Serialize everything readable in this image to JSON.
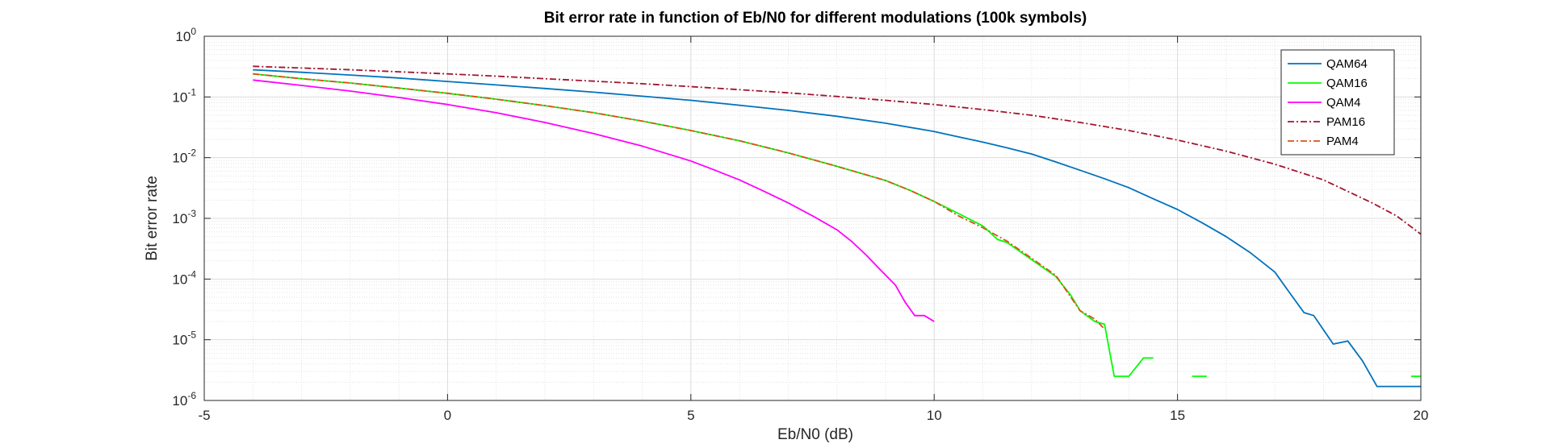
{
  "chart_data": {
    "type": "line",
    "title": "Bit error rate in function of Eb/N0 for different modulations (100k symbols)",
    "xlabel": "Eb/N0 (dB)",
    "ylabel": "Bit error rate",
    "xlim": [
      -5,
      20
    ],
    "ylim": [
      1e-06,
      1
    ],
    "yscale": "log",
    "grid": true,
    "minor_grid": true,
    "legend_position": "top-right",
    "x_ticks": [
      {
        "value": -5,
        "label": "-5"
      },
      {
        "value": 0,
        "label": "0"
      },
      {
        "value": 5,
        "label": "5"
      },
      {
        "value": 10,
        "label": "10"
      },
      {
        "value": 15,
        "label": "15"
      },
      {
        "value": 20,
        "label": "20"
      }
    ],
    "y_ticks": [
      {
        "value": 1e-06,
        "base": "10",
        "exp": "-6"
      },
      {
        "value": 1e-05,
        "base": "10",
        "exp": "-5"
      },
      {
        "value": 0.0001,
        "base": "10",
        "exp": "-4"
      },
      {
        "value": 0.001,
        "base": "10",
        "exp": "-3"
      },
      {
        "value": 0.01,
        "base": "10",
        "exp": "-2"
      },
      {
        "value": 0.1,
        "base": "10",
        "exp": "-1"
      },
      {
        "value": 1,
        "base": "10",
        "exp": "0"
      }
    ],
    "series": [
      {
        "name": "QAM64",
        "color": "#0072BD",
        "dash": "solid",
        "points": [
          [
            -4,
            0.28
          ],
          [
            -3,
            0.255
          ],
          [
            -2,
            0.23
          ],
          [
            -1,
            0.205
          ],
          [
            0,
            0.18
          ],
          [
            1,
            0.158
          ],
          [
            2,
            0.138
          ],
          [
            3,
            0.12
          ],
          [
            4,
            0.103
          ],
          [
            5,
            0.088
          ],
          [
            6,
            0.073
          ],
          [
            7,
            0.06
          ],
          [
            8,
            0.048
          ],
          [
            9,
            0.037
          ],
          [
            10,
            0.027
          ],
          [
            10.5,
            0.022
          ],
          [
            11,
            0.018
          ],
          [
            11.5,
            0.0145
          ],
          [
            12,
            0.0115
          ],
          [
            12.5,
            0.0085
          ],
          [
            13,
            0.0062
          ],
          [
            13.5,
            0.0045
          ],
          [
            14,
            0.0032
          ],
          [
            14.5,
            0.0021
          ],
          [
            15,
            0.0014
          ],
          [
            15.5,
            0.00085
          ],
          [
            16,
            0.0005
          ],
          [
            16.5,
            0.00027
          ],
          [
            17,
            0.00013
          ],
          [
            17.3,
            6e-05
          ],
          [
            17.6,
            2.8e-05
          ],
          [
            17.8,
            2.5e-05
          ],
          [
            18.2,
            8.5e-06
          ],
          [
            18.5,
            9.5e-06
          ],
          [
            18.8,
            4.5e-06
          ],
          [
            19.1,
            1.7e-06
          ],
          [
            19.5,
            1.7e-06
          ],
          [
            20,
            1.7e-06
          ]
        ]
      },
      {
        "name": "QAM16",
        "color": "#00FF00",
        "dash": "solid",
        "points": [
          [
            -4,
            0.24
          ],
          [
            -3,
            0.2
          ],
          [
            -2,
            0.17
          ],
          [
            -1,
            0.14
          ],
          [
            0,
            0.115
          ],
          [
            1,
            0.092
          ],
          [
            2,
            0.072
          ],
          [
            3,
            0.055
          ],
          [
            4,
            0.04
          ],
          [
            5,
            0.028
          ],
          [
            6,
            0.019
          ],
          [
            7,
            0.012
          ],
          [
            8,
            0.0072
          ],
          [
            9,
            0.0042
          ],
          [
            9.5,
            0.0029
          ],
          [
            10,
            0.0019
          ],
          [
            10.5,
            0.0012
          ],
          [
            11,
            0.00075
          ],
          [
            11.3,
            0.00045
          ],
          [
            11.5,
            0.0004
          ],
          [
            12,
            0.00021
          ],
          [
            12.5,
            0.00011
          ],
          [
            12.8,
            5.5e-05
          ],
          [
            13,
            3e-05
          ],
          [
            13.3,
            2e-05
          ],
          [
            13.5,
            1.8e-05
          ],
          [
            13.7,
            2.5e-06
          ],
          [
            14,
            2.5e-06
          ],
          [
            14.3,
            5e-06
          ],
          [
            14.5,
            5e-06
          ]
        ]
      },
      {
        "name": "QAM4",
        "color": "#FF00FF",
        "dash": "solid",
        "points": [
          [
            -4,
            0.19
          ],
          [
            -3,
            0.155
          ],
          [
            -2,
            0.125
          ],
          [
            -1,
            0.098
          ],
          [
            0,
            0.075
          ],
          [
            1,
            0.055
          ],
          [
            2,
            0.038
          ],
          [
            3,
            0.025
          ],
          [
            4,
            0.0155
          ],
          [
            5,
            0.0088
          ],
          [
            5.5,
            0.0062
          ],
          [
            6,
            0.0043
          ],
          [
            6.5,
            0.0028
          ],
          [
            7,
            0.0018
          ],
          [
            7.5,
            0.0011
          ],
          [
            8,
            0.00065
          ],
          [
            8.3,
            0.00042
          ],
          [
            8.6,
            0.00025
          ],
          [
            8.9,
            0.00014
          ],
          [
            9.2,
            8e-05
          ],
          [
            9.4,
            4.2e-05
          ],
          [
            9.6,
            2.5e-05
          ],
          [
            9.8,
            2.5e-05
          ],
          [
            10,
            2e-05
          ]
        ]
      },
      {
        "name": "PAM16",
        "color": "#A2142F",
        "dash": "dashdot",
        "points": [
          [
            -4,
            0.32
          ],
          [
            -3,
            0.3
          ],
          [
            -2,
            0.28
          ],
          [
            -1,
            0.26
          ],
          [
            0,
            0.24
          ],
          [
            1,
            0.22
          ],
          [
            2,
            0.2
          ],
          [
            3,
            0.182
          ],
          [
            4,
            0.165
          ],
          [
            5,
            0.148
          ],
          [
            6,
            0.132
          ],
          [
            7,
            0.117
          ],
          [
            8,
            0.102
          ],
          [
            9,
            0.088
          ],
          [
            10,
            0.075
          ],
          [
            11,
            0.062
          ],
          [
            12,
            0.05
          ],
          [
            13,
            0.038
          ],
          [
            14,
            0.028
          ],
          [
            15,
            0.0195
          ],
          [
            16,
            0.0128
          ],
          [
            17,
            0.0078
          ],
          [
            18,
            0.0043
          ],
          [
            19,
            0.0018
          ],
          [
            19.5,
            0.0011
          ],
          [
            20,
            0.00055
          ]
        ]
      },
      {
        "name": "PAM4",
        "color": "#D95319",
        "dash": "dashdot",
        "points": [
          [
            -4,
            0.24
          ],
          [
            -3,
            0.2
          ],
          [
            -2,
            0.17
          ],
          [
            -1,
            0.14
          ],
          [
            0,
            0.115
          ],
          [
            1,
            0.092
          ],
          [
            2,
            0.072
          ],
          [
            3,
            0.055
          ],
          [
            4,
            0.04
          ],
          [
            5,
            0.028
          ],
          [
            6,
            0.019
          ],
          [
            7,
            0.012
          ],
          [
            8,
            0.0072
          ],
          [
            9,
            0.0042
          ],
          [
            9.5,
            0.0029
          ],
          [
            10,
            0.0019
          ],
          [
            10.5,
            0.0011
          ],
          [
            11,
            0.0007
          ],
          [
            11.5,
            0.00042
          ],
          [
            12,
            0.00022
          ],
          [
            12.5,
            0.000115
          ],
          [
            13,
            3e-05
          ],
          [
            13.3,
            2.2e-05
          ],
          [
            13.5,
            1.5e-05
          ]
        ]
      }
    ],
    "extra_marks": [
      {
        "series": "QAM16",
        "segment": [
          [
            15.3,
            2.5e-06
          ],
          [
            15.6,
            2.5e-06
          ]
        ]
      },
      {
        "series": "QAM16",
        "segment": [
          [
            19.8,
            2.5e-06
          ],
          [
            20,
            2.5e-06
          ]
        ]
      }
    ]
  }
}
